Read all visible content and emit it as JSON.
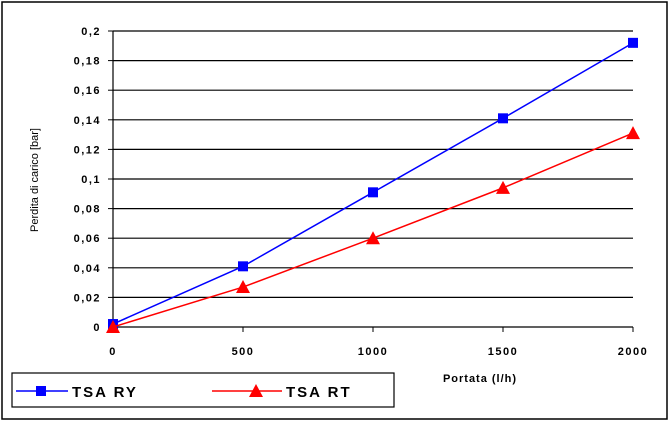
{
  "chart_data": {
    "type": "line",
    "x": [
      0,
      500,
      1000,
      1500,
      2000
    ],
    "xticks": [
      "0",
      "500",
      "1000",
      "1500",
      "2000"
    ],
    "yticks": [
      "0",
      "0,02",
      "0,04",
      "0,06",
      "0,08",
      "0,1",
      "0,12",
      "0,14",
      "0,16",
      "0,18",
      "0,2"
    ],
    "xlim": [
      0,
      2000
    ],
    "ylim": [
      0,
      0.2
    ],
    "xlabel": "Portata (l/h)",
    "ylabel": "Perdita di carico [bar]",
    "grid": "horizontal",
    "legend_position": "bottom-left",
    "series": [
      {
        "name": "TSA RY",
        "color": "#0000ff",
        "marker": "square",
        "values": [
          0.002,
          0.041,
          0.091,
          0.141,
          0.192
        ]
      },
      {
        "name": "TSA RT",
        "color": "#ff0000",
        "marker": "triangle",
        "values": [
          0.0,
          0.027,
          0.06,
          0.094,
          0.131
        ]
      }
    ]
  }
}
